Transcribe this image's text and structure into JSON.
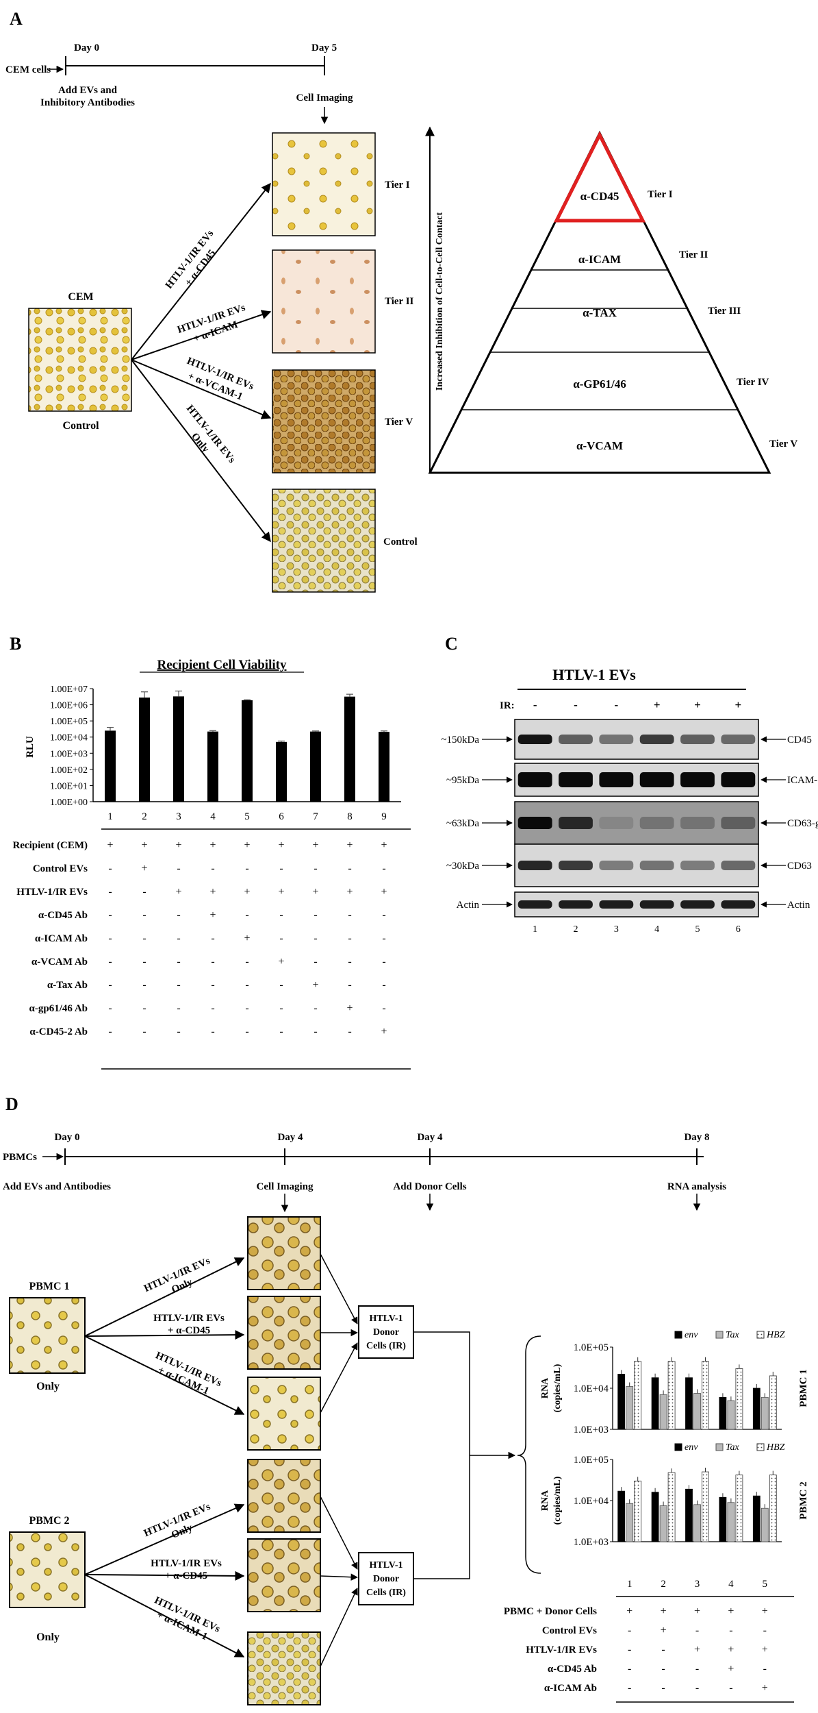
{
  "panel_a": {
    "letter": "A",
    "timeline": {
      "day0": "Day 0",
      "day5": "Day 5",
      "cells": "CEM cells",
      "add1": "Add EVs and",
      "add2": "Inhibitory Antibodies",
      "imaging": "Cell Imaging"
    },
    "cem": {
      "title": "CEM",
      "subtitle": "Control"
    },
    "branches": [
      {
        "line1": "HTLV-1/IR EVs",
        "line2": "+ α-CD45",
        "tier": "Tier I"
      },
      {
        "line1": "HTLV-1/IR EVs",
        "line2": "+ α-ICAM",
        "tier": "Tier II"
      },
      {
        "line1": "HTLV-1/IR EVs",
        "line2": "+ α-VCAM-1",
        "tier": "Tier V"
      },
      {
        "line1": "HTLV-1/IR EVs",
        "line2": "Only",
        "tier": "Control"
      }
    ],
    "pyramid": {
      "axis_label": "Increased Inhibition of Cell-to-Cell Contact",
      "levels": [
        {
          "label": "α-CD45",
          "tier": "Tier I",
          "highlight": "#e02020"
        },
        {
          "label": "α-ICAM",
          "tier": "Tier II"
        },
        {
          "label": "α-TAX",
          "tier": "Tier III"
        },
        {
          "label": "α-GP61/46",
          "tier": "Tier IV"
        },
        {
          "label": "α-VCAM",
          "tier": "Tier V"
        }
      ]
    }
  },
  "panel_b": {
    "letter": "B",
    "chart_data": {
      "type": "bar",
      "title": "Recipient Cell Viability",
      "ylabel": "RLU",
      "yscale": "log",
      "ylim": [
        1,
        10000000
      ],
      "yticks": [
        "1.00E+00",
        "1.00E+01",
        "1.00E+02",
        "1.00E+03",
        "1.00E+04",
        "1.00E+05",
        "1.00E+06",
        "1.00E+07"
      ],
      "categories": [
        "1",
        "2",
        "3",
        "4",
        "5",
        "6",
        "7",
        "8",
        "9"
      ],
      "values": [
        25000,
        2800000,
        3300000,
        22000,
        1900000,
        5000,
        22000,
        3200000,
        21000
      ],
      "errors": [
        15000,
        3500000,
        3800000,
        3000,
        150000,
        700,
        2000,
        1300000,
        3000
      ]
    },
    "condition_table": {
      "rows": [
        {
          "label": "Recipient (CEM)",
          "values": [
            "+",
            "+",
            "+",
            "+",
            "+",
            "+",
            "+",
            "+",
            "+"
          ]
        },
        {
          "label": "Control EVs",
          "values": [
            "-",
            "+",
            "-",
            "-",
            "-",
            "-",
            "-",
            "-",
            "-"
          ]
        },
        {
          "label": "HTLV-1/IR EVs",
          "values": [
            "-",
            "-",
            "+",
            "+",
            "+",
            "+",
            "+",
            "+",
            "+"
          ]
        },
        {
          "label": "α-CD45 Ab",
          "values": [
            "-",
            "-",
            "-",
            "+",
            "-",
            "-",
            "-",
            "-",
            "-"
          ]
        },
        {
          "label": "α-ICAM Ab",
          "values": [
            "-",
            "-",
            "-",
            "-",
            "+",
            "-",
            "-",
            "-",
            "-"
          ]
        },
        {
          "label": "α-VCAM Ab",
          "values": [
            "-",
            "-",
            "-",
            "-",
            "-",
            "+",
            "-",
            "-",
            "-"
          ]
        },
        {
          "label": "α-Tax Ab",
          "values": [
            "-",
            "-",
            "-",
            "-",
            "-",
            "-",
            "+",
            "-",
            "-"
          ]
        },
        {
          "label": "α-gp61/46 Ab",
          "values": [
            "-",
            "-",
            "-",
            "-",
            "-",
            "-",
            "-",
            "+",
            "-"
          ]
        },
        {
          "label": "α-CD45-2 Ab",
          "values": [
            "-",
            "-",
            "-",
            "-",
            "-",
            "-",
            "-",
            "-",
            "+"
          ]
        }
      ]
    }
  },
  "panel_c": {
    "letter": "C",
    "title": "HTLV-1 EVs",
    "ir_label": "IR:",
    "ir": [
      "-",
      "-",
      "-",
      "+",
      "+",
      "+"
    ],
    "lanes": [
      "1",
      "2",
      "3",
      "4",
      "5",
      "6"
    ],
    "blots": [
      {
        "left": "~150kDa",
        "right": "CD45"
      },
      {
        "left": "~95kDa",
        "right": "ICAM-1"
      },
      {
        "left": "~63kDa",
        "right": "CD63-gly"
      },
      {
        "left": "~30kDa",
        "right": "CD63"
      },
      {
        "left": "Actin",
        "right": "Actin"
      }
    ]
  },
  "panel_d": {
    "letter": "D",
    "timeline": {
      "day0": "Day 0",
      "day4a": "Day 4",
      "day4b": "Day 4",
      "day8": "Day 8",
      "cells": "PBMCs",
      "add": "Add EVs and Antibodies",
      "imaging": "Cell Imaging",
      "donor": "Add Donor Cells",
      "rna": "RNA analysis"
    },
    "pbmc1": {
      "title": "PBMC 1",
      "subtitle": "Only"
    },
    "pbmc2": {
      "title": "PBMC 2",
      "subtitle": "Only"
    },
    "branches": [
      {
        "line1": "HTLV-1/IR EVs",
        "line2": "Only"
      },
      {
        "line1": "HTLV-1/IR EVs",
        "line2": "+ α-CD45"
      },
      {
        "line1": "HTLV-1/IR EVs",
        "line2": "+ α-ICAM-1"
      }
    ],
    "donor_box": {
      "line1": "HTLV-1",
      "line2": "Donor",
      "line3": "Cells (IR)"
    },
    "chart_data": [
      {
        "type": "bar",
        "side_label": "PBMC 1",
        "ylabel": "RNA (copies/mL)",
        "yscale": "log",
        "ylim": [
          1000,
          100000
        ],
        "yticks": [
          "1.0E+03",
          "1.0E+04",
          "1.0E+05"
        ],
        "categories": [
          "1",
          "2",
          "3",
          "4",
          "5"
        ],
        "legend": [
          "env",
          "Tax",
          "HBZ"
        ],
        "series": [
          {
            "name": "env",
            "values": [
              22000,
              18000,
              18000,
              6000,
              10000
            ]
          },
          {
            "name": "Tax",
            "values": [
              11000,
              7000,
              7500,
              5000,
              6000
            ]
          },
          {
            "name": "HBZ",
            "values": [
              45000,
              45000,
              45000,
              30000,
              20000
            ]
          }
        ]
      },
      {
        "type": "bar",
        "side_label": "PBMC 2",
        "ylabel": "RNA (copies/mL)",
        "yscale": "log",
        "ylim": [
          1000,
          100000
        ],
        "yticks": [
          "1.0E+03",
          "1.0E+04",
          "1.0E+05"
        ],
        "categories": [
          "1",
          "2",
          "3",
          "4",
          "5"
        ],
        "legend": [
          "env",
          "Tax",
          "HBZ"
        ],
        "series": [
          {
            "name": "env",
            "values": [
              17000,
              16000,
              19000,
              12000,
              13000
            ]
          },
          {
            "name": "Tax",
            "values": [
              8500,
              7500,
              8000,
              9000,
              6500
            ]
          },
          {
            "name": "HBZ",
            "values": [
              30000,
              48000,
              50000,
              42000,
              42000
            ]
          }
        ]
      }
    ],
    "condition_table": {
      "rows": [
        {
          "label": "PBMC + Donor Cells",
          "values": [
            "+",
            "+",
            "+",
            "+",
            "+"
          ]
        },
        {
          "label": "Control EVs",
          "values": [
            "-",
            "+",
            "-",
            "-",
            "-"
          ]
        },
        {
          "label": "HTLV-1/IR EVs",
          "values": [
            "-",
            "-",
            "+",
            "+",
            "+"
          ]
        },
        {
          "label": "α-CD45 Ab",
          "values": [
            "-",
            "-",
            "-",
            "+",
            "-"
          ]
        },
        {
          "label": "α-ICAM Ab",
          "values": [
            "-",
            "-",
            "-",
            "-",
            "+"
          ]
        }
      ]
    }
  }
}
